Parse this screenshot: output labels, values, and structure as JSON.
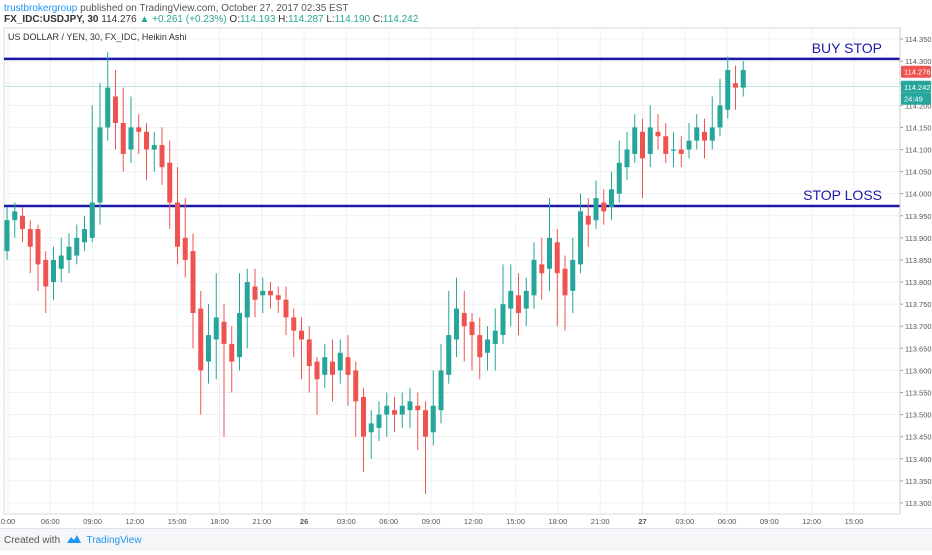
{
  "header": {
    "author": "trustbrokergroup",
    "published": "published on TradingView.com, October 27, 2017 02:35 EST",
    "symbol": "FX_IDC:USDJPY, 30",
    "last": "114.276",
    "change": "▲ +0.261 (+0.23%)",
    "o_label": "O:",
    "o_val": "114.193",
    "h_label": "H:",
    "h_val": "114.287",
    "l_label": "L:",
    "l_val": "114.190",
    "c_label": "C:",
    "c_val": "114.242"
  },
  "footer": {
    "created_with": "Created with",
    "brand": "TradingView"
  },
  "colors": {
    "up": "#26a69a",
    "down": "#ef5350",
    "line": "#1a1aa6",
    "grid": "#eef0f3"
  },
  "chart_data": {
    "type": "candlestick",
    "title": "US DOLLAR / YEN, 30, FX_IDC, Heikin Ashi",
    "ylim": [
      113.275,
      114.375
    ],
    "y_ticks": [
      "114.350",
      "114.300",
      "114.250",
      "114.200",
      "114.150",
      "114.100",
      "114.050",
      "114.000",
      "113.950",
      "113.900",
      "113.850",
      "113.800",
      "113.750",
      "113.700",
      "113.650",
      "113.600",
      "113.550",
      "113.500",
      "113.450",
      "113.400",
      "113.350",
      "113.300"
    ],
    "x_ticks": [
      "0:00",
      "06:00",
      "09:00",
      "12:00",
      "15:00",
      "18:00",
      "21:00",
      "26",
      "03:00",
      "06:00",
      "09:00",
      "12:00",
      "15:00",
      "18:00",
      "21:00",
      "27",
      "03:00",
      "06:00",
      "09:00",
      "12:00",
      "15:00"
    ],
    "horizontal_lines": [
      {
        "label": "BUY STOP",
        "value": 114.305
      },
      {
        "label": "STOP LOSS",
        "value": 113.972
      }
    ],
    "price_labels": [
      {
        "value": 114.276,
        "text": "114.276",
        "color": "#ef5350"
      },
      {
        "value": 114.242,
        "text": "114.242",
        "color": "#26a69a"
      },
      {
        "value": 114.215,
        "text": "24:49",
        "color": "#26a69a"
      }
    ],
    "candles": [
      [
        113.87,
        113.94,
        113.97,
        113.85
      ],
      [
        113.94,
        113.96,
        113.98,
        113.9
      ],
      [
        113.95,
        113.92,
        113.97,
        113.89
      ],
      [
        113.92,
        113.88,
        113.94,
        113.82
      ],
      [
        113.92,
        113.84,
        113.93,
        113.78
      ],
      [
        113.85,
        113.79,
        113.87,
        113.73
      ],
      [
        113.8,
        113.85,
        113.88,
        113.76
      ],
      [
        113.83,
        113.86,
        113.9,
        113.8
      ],
      [
        113.85,
        113.88,
        113.91,
        113.82
      ],
      [
        113.86,
        113.9,
        113.93,
        113.84
      ],
      [
        113.89,
        113.92,
        113.95,
        113.87
      ],
      [
        113.9,
        113.98,
        114.2,
        113.89
      ],
      [
        113.98,
        114.15,
        114.25,
        113.93
      ],
      [
        114.15,
        114.24,
        114.32,
        114.12
      ],
      [
        114.22,
        114.16,
        114.28,
        114.1
      ],
      [
        114.16,
        114.09,
        114.24,
        114.05
      ],
      [
        114.1,
        114.15,
        114.22,
        114.07
      ],
      [
        114.15,
        114.14,
        114.18,
        114.09
      ],
      [
        114.14,
        114.1,
        114.16,
        114.03
      ],
      [
        114.1,
        114.11,
        114.14,
        114.05
      ],
      [
        114.11,
        114.06,
        114.15,
        114.02
      ],
      [
        114.07,
        113.98,
        114.12,
        113.92
      ],
      [
        113.98,
        113.88,
        114.06,
        113.84
      ],
      [
        113.9,
        113.85,
        113.99,
        113.81
      ],
      [
        113.87,
        113.73,
        113.91,
        113.65
      ],
      [
        113.74,
        113.6,
        113.78,
        113.5
      ],
      [
        113.62,
        113.68,
        113.75,
        113.57
      ],
      [
        113.67,
        113.72,
        113.82,
        113.58
      ],
      [
        113.71,
        113.66,
        113.75,
        113.45
      ],
      [
        113.66,
        113.62,
        113.7,
        113.55
      ],
      [
        113.63,
        113.73,
        113.82,
        113.6
      ],
      [
        113.72,
        113.8,
        113.83,
        113.65
      ],
      [
        113.79,
        113.76,
        113.83,
        113.72
      ],
      [
        113.77,
        113.78,
        113.81,
        113.73
      ],
      [
        113.78,
        113.77,
        113.8,
        113.74
      ],
      [
        113.77,
        113.76,
        113.79,
        113.73
      ],
      [
        113.76,
        113.72,
        113.79,
        113.68
      ],
      [
        113.72,
        113.69,
        113.74,
        113.63
      ],
      [
        113.69,
        113.67,
        113.72,
        113.58
      ],
      [
        113.67,
        113.61,
        113.7,
        113.55
      ],
      [
        113.62,
        113.58,
        113.63,
        113.5
      ],
      [
        113.59,
        113.63,
        113.66,
        113.56
      ],
      [
        113.62,
        113.59,
        113.67,
        113.53
      ],
      [
        113.6,
        113.64,
        113.67,
        113.57
      ],
      [
        113.63,
        113.59,
        113.68,
        113.52
      ],
      [
        113.6,
        113.53,
        113.62,
        113.45
      ],
      [
        113.54,
        113.45,
        113.56,
        113.37
      ],
      [
        113.46,
        113.48,
        113.51,
        113.4
      ],
      [
        113.47,
        113.5,
        113.53,
        113.44
      ],
      [
        113.5,
        113.52,
        113.55,
        113.45
      ],
      [
        113.51,
        113.5,
        113.54,
        113.46
      ],
      [
        113.5,
        113.52,
        113.55,
        113.47
      ],
      [
        113.51,
        113.53,
        113.56,
        113.47
      ],
      [
        113.52,
        113.51,
        113.55,
        113.42
      ],
      [
        113.51,
        113.45,
        113.53,
        113.32
      ],
      [
        113.46,
        113.52,
        113.6,
        113.43
      ],
      [
        113.51,
        113.6,
        113.66,
        113.48
      ],
      [
        113.59,
        113.68,
        113.78,
        113.57
      ],
      [
        113.67,
        113.74,
        113.81,
        113.63
      ],
      [
        113.73,
        113.7,
        113.78,
        113.62
      ],
      [
        113.71,
        113.68,
        113.73,
        113.6
      ],
      [
        113.68,
        113.63,
        113.72,
        113.58
      ],
      [
        113.64,
        113.67,
        113.7,
        113.6
      ],
      [
        113.66,
        113.69,
        113.74,
        113.6
      ],
      [
        113.68,
        113.75,
        113.84,
        113.66
      ],
      [
        113.74,
        113.78,
        113.84,
        113.7
      ],
      [
        113.77,
        113.73,
        113.82,
        113.68
      ],
      [
        113.74,
        113.78,
        113.81,
        113.7
      ],
      [
        113.77,
        113.85,
        113.89,
        113.74
      ],
      [
        113.84,
        113.82,
        113.9,
        113.76
      ],
      [
        113.83,
        113.9,
        113.99,
        113.78
      ],
      [
        113.89,
        113.82,
        113.92,
        113.7
      ],
      [
        113.83,
        113.77,
        113.86,
        113.69
      ],
      [
        113.78,
        113.85,
        113.9,
        113.73
      ],
      [
        113.84,
        113.96,
        114.0,
        113.82
      ],
      [
        113.95,
        113.93,
        113.99,
        113.88
      ],
      [
        113.94,
        113.99,
        114.03,
        113.92
      ],
      [
        113.98,
        113.96,
        114.01,
        113.93
      ],
      [
        113.97,
        114.01,
        114.05,
        113.94
      ],
      [
        114.0,
        114.07,
        114.12,
        113.98
      ],
      [
        114.06,
        114.1,
        114.14,
        114.03
      ],
      [
        114.09,
        114.15,
        114.18,
        114.07
      ],
      [
        114.14,
        114.08,
        114.17,
        113.99
      ],
      [
        114.09,
        114.15,
        114.2,
        114.06
      ],
      [
        114.14,
        114.13,
        114.18,
        114.1
      ],
      [
        114.13,
        114.09,
        114.16,
        114.07
      ],
      [
        114.1,
        114.1,
        114.14,
        114.06
      ],
      [
        114.1,
        114.09,
        114.13,
        114.06
      ],
      [
        114.1,
        114.12,
        114.16,
        114.08
      ],
      [
        114.12,
        114.15,
        114.18,
        114.1
      ],
      [
        114.14,
        114.12,
        114.17,
        114.08
      ],
      [
        114.12,
        114.15,
        114.22,
        114.1
      ],
      [
        114.15,
        114.2,
        114.26,
        114.13
      ],
      [
        114.19,
        114.28,
        114.31,
        114.17
      ],
      [
        114.25,
        114.24,
        114.29,
        114.19
      ],
      [
        114.24,
        114.28,
        114.3,
        114.22
      ]
    ]
  }
}
